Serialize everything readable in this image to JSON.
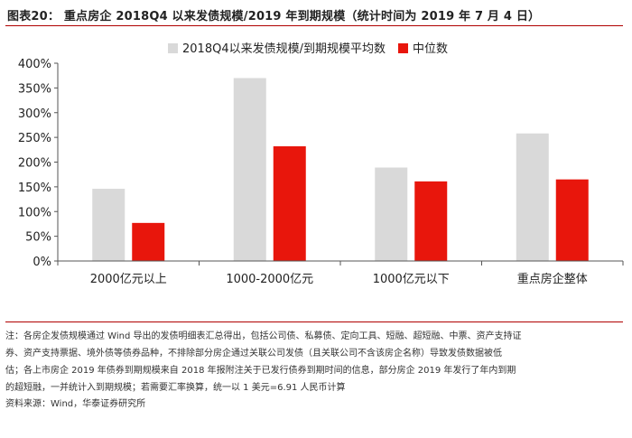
{
  "header": {
    "title": "图表20： 重点房企 2018Q4 以来发债规模/2019 年到期规模（统计时间为 2019 年 7 月 4 日）"
  },
  "chart_data": {
    "type": "bar",
    "categories": [
      "2000亿元以上",
      "1000-2000亿元",
      "1000亿元以下",
      "重点房企整体"
    ],
    "series": [
      {
        "name": "2018Q4以来发债规模/到期规模平均数",
        "color": "#d9d9d9",
        "values": [
          1.46,
          3.7,
          1.89,
          2.58
        ]
      },
      {
        "name": "中位数",
        "color": "#e8160c",
        "values": [
          0.77,
          2.32,
          1.61,
          1.65
        ]
      }
    ],
    "ylim": [
      0,
      4
    ],
    "yticks": [
      "0%",
      "50%",
      "100%",
      "150%",
      "200%",
      "250%",
      "300%",
      "350%",
      "400%"
    ],
    "ytick_values": [
      0,
      0.5,
      1.0,
      1.5,
      2.0,
      2.5,
      3.0,
      3.5,
      4.0
    ],
    "legend_position": "top-center",
    "title": "",
    "xlabel": "",
    "ylabel": ""
  },
  "footer": {
    "note_lines": [
      "注：各房企发债规模通过 Wind 导出的发债明细表汇总得出，包括公司债、私募债、定向工具、短融、超短融、中票、资产支持证",
      "券、资产支持票据、境外债等债券品种，不排除部分房企通过关联公司发债（且关联公司不含该房企名称）导致发债数据被低",
      "估；各上市房企 2019 年债券到期规模来自 2018 年报附注关于已发行债券到期时间的信息，部分房企 2019 年发行了年内到期",
      "的超短融，一并统计入到期规模；若需要汇率换算，统一以 1 美元=6.91 人民币计算"
    ],
    "source": "资料来源：Wind，华泰证券研究所"
  }
}
